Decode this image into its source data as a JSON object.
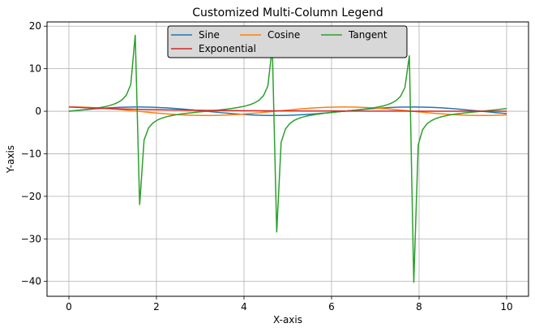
{
  "chart_data": {
    "type": "line",
    "title": "Customized Multi-Column Legend",
    "xlabel": "X-axis",
    "ylabel": "Y-axis",
    "xlim": [
      -0.5,
      10.5
    ],
    "ylim": [
      -43.5,
      21
    ],
    "xticks": [
      0,
      2,
      4,
      6,
      8,
      10
    ],
    "yticks": [
      -40,
      -30,
      -20,
      -10,
      0,
      10,
      20
    ],
    "grid": true,
    "legend": {
      "placement": "top-center",
      "columns": 3
    },
    "sample_count": 100,
    "x_range": [
      0,
      10
    ],
    "series": [
      {
        "name": "Sine",
        "function": "sin(x)",
        "color": "#1f77b4"
      },
      {
        "name": "Cosine",
        "function": "cos(x)",
        "color": "#ff7f0e"
      },
      {
        "name": "Tangent",
        "function": "tan(x)",
        "color": "#2ca02c"
      },
      {
        "name": "Exponential",
        "function": "exp(-x/2)",
        "color": "#d62728"
      }
    ]
  }
}
